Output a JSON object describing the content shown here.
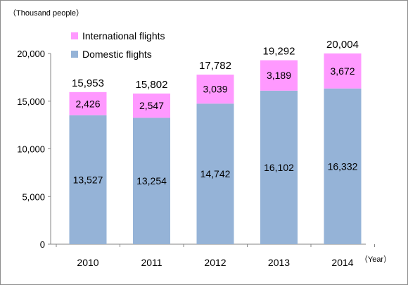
{
  "chart_data": {
    "type": "bar",
    "stacked": true,
    "y_unit_label": "（Thousand people）",
    "x_unit_label": "（Year）",
    "categories": [
      "2010",
      "2011",
      "2012",
      "2013",
      "2014"
    ],
    "series": [
      {
        "name": "Domestic flights",
        "color": "#95B3D7",
        "values": [
          13527,
          13254,
          14742,
          16102,
          16332
        ]
      },
      {
        "name": "International flights",
        "color": "#FF99FF",
        "values": [
          2426,
          2547,
          3039,
          3189,
          3672
        ]
      }
    ],
    "totals": [
      15953,
      15802,
      17782,
      19292,
      20004
    ],
    "ylim": [
      0,
      20000
    ],
    "yticks": [
      0,
      5000,
      10000,
      15000,
      20000
    ],
    "grid": false,
    "legend_position": "top-left"
  }
}
